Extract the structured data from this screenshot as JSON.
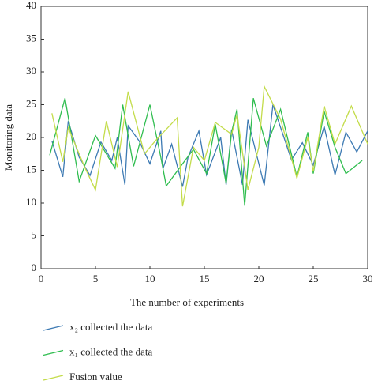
{
  "chart_data": {
    "type": "line",
    "x_label": "The number of experiments",
    "y_label": "Monitoring data",
    "xlim": [
      0,
      30
    ],
    "xticks": [
      0,
      5,
      10,
      15,
      20,
      25,
      30
    ],
    "ylim": [
      0,
      40
    ],
    "yticks": [
      0,
      5,
      10,
      15,
      20,
      25,
      30,
      35,
      40
    ],
    "series": [
      {
        "name": "x₂ collected the data",
        "color": "#3d7ab3",
        "x": [
          1,
          2,
          2.5,
          3.5,
          4.5,
          5.5,
          6.5,
          7,
          7.7,
          8,
          9,
          10,
          11,
          11.2,
          12,
          13,
          13.5,
          14.5,
          15.2,
          16.5,
          17,
          17.5,
          18.5,
          19,
          20.5,
          21.3,
          23,
          24,
          25,
          26,
          27,
          28,
          29,
          30
        ],
        "values": [
          19.5,
          14,
          22.5,
          17,
          14.2,
          19.3,
          16.5,
          20,
          12.8,
          21.8,
          19.5,
          16,
          21,
          15.3,
          19,
          12.5,
          17,
          21,
          14.3,
          20,
          12.8,
          21.2,
          12.8,
          22.7,
          12.7,
          25,
          16.6,
          19.2,
          15.8,
          21.7,
          14.3,
          20.8,
          17.8,
          21
        ]
      },
      {
        "name": "x₁ collected the data",
        "color": "#2fbd4f",
        "x": [
          0.8,
          2.2,
          3.5,
          5,
          6,
          6.8,
          7.5,
          8.5,
          10,
          11,
          11.5,
          13,
          14,
          15.2,
          16,
          17,
          17.5,
          18,
          18.7,
          19.5,
          20.7,
          22,
          23.5,
          24.5,
          25,
          26,
          27,
          28,
          29.5
        ],
        "values": [
          17.3,
          26,
          13.3,
          20.3,
          17.5,
          15.3,
          25,
          15.6,
          25,
          17,
          12.6,
          16,
          18.2,
          14.5,
          22,
          13,
          20.8,
          24.3,
          9.6,
          26,
          18.7,
          24.3,
          14,
          20.8,
          14.5,
          24,
          18.5,
          14.5,
          16.5
        ]
      },
      {
        "name": "Fusion value",
        "color": "#c3dc4a",
        "x": [
          1,
          2,
          2.5,
          4,
          5,
          6,
          7,
          8,
          9.5,
          10.5,
          12.5,
          13,
          14,
          15,
          16,
          17.5,
          18,
          19,
          20,
          20.5,
          22,
          23.5,
          24.5,
          25,
          26,
          27,
          28.5,
          30
        ],
        "values": [
          23.7,
          16.3,
          21.5,
          15.5,
          12,
          22.5,
          15.5,
          27,
          17.5,
          19.5,
          23,
          9.5,
          18.5,
          16.5,
          22.3,
          20.5,
          23.5,
          12,
          18.5,
          27.8,
          22.8,
          13.8,
          20,
          14.8,
          24.8,
          19,
          24.8,
          19
        ]
      }
    ]
  }
}
